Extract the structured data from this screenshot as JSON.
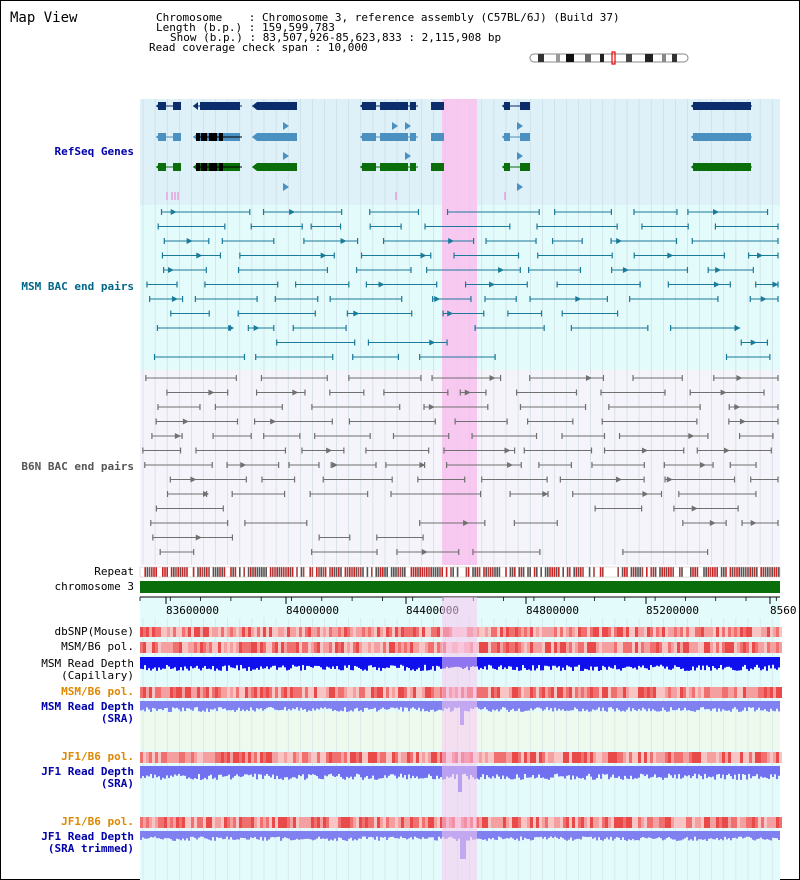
{
  "title": "Map View",
  "info": {
    "chromosome_label": "Chromosome",
    "chromosome_value": "Chromosome 3, reference assembly (C57BL/6J) (Build 37)",
    "length_label": "Length (b.p.)",
    "length_value": "159,599,783",
    "show_label": "Show (b.p.)",
    "show_value": "83,507,926-85,623,833 : 2,115,908 bp",
    "coverage_label": "Read coverage check span",
    "coverage_value": "10,000"
  },
  "tracks": {
    "refseq": "RefSeq Genes",
    "msm_bac": "MSM BAC end pairs",
    "b6n_bac": "B6N BAC end pairs",
    "repeat": "Repeat",
    "chromosome": "chromosome 3",
    "dbsnp": "dbSNP(Mouse)",
    "msm_b6_pol": "MSM/B6 pol.",
    "msm_read_depth_cap_1": "MSM Read Depth",
    "msm_read_depth_cap_2": "(Capillary)",
    "msm_b6_pol_2": "MSM/B6 pol.",
    "msm_read_depth_sra_1": "MSM Read Depth",
    "msm_read_depth_sra_2": "(SRA)",
    "jf1_b6_pol": "JF1/B6 pol.",
    "jf1_read_depth_sra_1": "JF1 Read Depth",
    "jf1_read_depth_sra_2": "(SRA)",
    "jf1_b6_pol_2": "JF1/B6 pol.",
    "jf1_read_depth_trim_1": "JF1 Read Depth",
    "jf1_read_depth_trim_2": "(SRA trimmed)"
  },
  "axis": {
    "ticks": [
      "83600000",
      "84000000",
      "84400000",
      "84800000",
      "85200000",
      "8560"
    ]
  },
  "colors": {
    "refseq_bg": "#def0f8",
    "msm_bac_bg": "#e4fbfb",
    "b6n_bac_bg": "#f4f4fa",
    "highlight": "#f7c8f0",
    "gene_dark": "#0b2d6b",
    "gene_mid": "#4a90c0",
    "gene_green": "#0a6e0a",
    "bac_teal": "#1a7a9a",
    "bac_gray": "#707070",
    "label_blue": "#0000aa",
    "label_teal": "#006688",
    "label_orange": "#dd8800",
    "chromosome_green": "#0a6e0a"
  }
}
